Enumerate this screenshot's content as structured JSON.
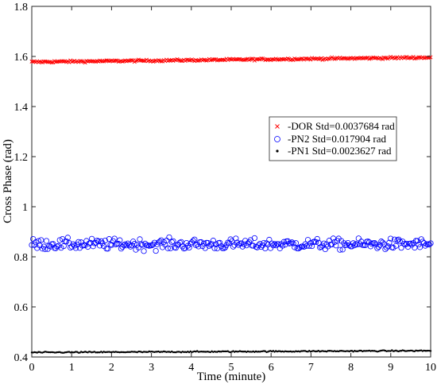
{
  "chart_data": {
    "type": "scatter",
    "title": "",
    "xlabel": "Time (minute)",
    "ylabel": "Cross Phase (rad)",
    "xlim": [
      0,
      10
    ],
    "ylim": [
      0.4,
      1.8
    ],
    "x_ticks": [
      "0",
      "1",
      "2",
      "3",
      "4",
      "5",
      "6",
      "7",
      "8",
      "9",
      "10"
    ],
    "y_ticks": [
      "0.4",
      "0.6",
      "0.8",
      "1",
      "1.2",
      "1.4",
      "1.6",
      "1.8"
    ],
    "grid": false,
    "legend_position": "right-middle",
    "series": [
      {
        "name": "-DOR Std=0.0037684 rad",
        "marker": "x",
        "color": "#ff0000",
        "approx_start": 1.578,
        "approx_end": 1.596,
        "std": 0.0037684
      },
      {
        "name": "-PN2 Std=0.017904 rad",
        "marker": "circle-open",
        "color": "#0000ff",
        "approx_mean": 0.85,
        "std": 0.017904
      },
      {
        "name": "-PN1 Std=0.0023627 rad",
        "marker": "dot",
        "color": "#000000",
        "approx_start": 0.418,
        "approx_end": 0.425,
        "std": 0.0023627
      }
    ]
  }
}
